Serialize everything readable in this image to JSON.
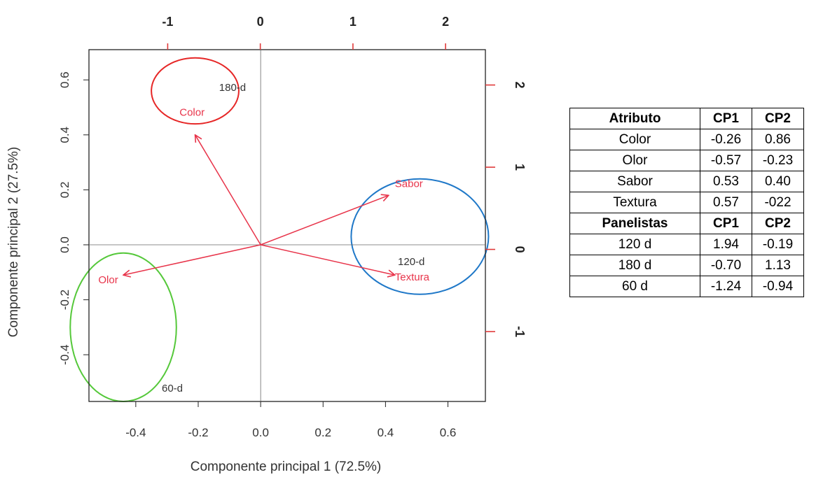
{
  "chart_data": {
    "type": "scatter",
    "subtype": "biplot",
    "title": "",
    "xlabel": "Componente principal 1 (72.5%)",
    "ylabel": "Componente principal 2 (27.5%)",
    "xlim": [
      -0.55,
      0.72
    ],
    "ylim": [
      -0.57,
      0.71
    ],
    "bottom_ticks": [
      "-0.4",
      "-0.2",
      "0.0",
      "0.2",
      "0.4",
      "0.6"
    ],
    "left_ticks": [
      "-0.4",
      "-0.2",
      "0.0",
      "0.2",
      "0.4",
      "0.6"
    ],
    "top_ticks": [
      "-1",
      "0",
      "1",
      "2"
    ],
    "right_ticks": [
      "-1",
      "0",
      "1",
      "2"
    ],
    "top_axis_range": [
      -1.85,
      2.43
    ],
    "right_axis_range": [
      -1.85,
      2.43
    ],
    "arrows": [
      {
        "label": "Color",
        "x": -0.21,
        "y": 0.4,
        "label_x": -0.26,
        "label_y": 0.47
      },
      {
        "label": "Olor",
        "x": -0.44,
        "y": -0.11,
        "label_x": -0.52,
        "label_y": -0.14
      },
      {
        "label": "Sabor",
        "x": 0.41,
        "y": 0.18,
        "label_x": 0.43,
        "label_y": 0.21
      },
      {
        "label": "Textura",
        "x": 0.43,
        "y": -0.11,
        "label_x": 0.43,
        "label_y": -0.13
      }
    ],
    "points": [
      {
        "label": "180-d",
        "x": -0.3,
        "y": 1.93
      },
      {
        "label": "60-d",
        "x": -0.95,
        "y": -1.73
      },
      {
        "label": "120-d",
        "x": 1.63,
        "y": -0.19
      }
    ],
    "clusters": [
      {
        "color": "#e62626",
        "cx": -0.21,
        "cy": 0.56,
        "rx": 0.14,
        "ry": 0.12
      },
      {
        "color": "#1f78c8",
        "cx": 0.51,
        "cy": 0.03,
        "rx": 0.22,
        "ry": 0.21
      },
      {
        "color": "#55c83a",
        "cx": -0.44,
        "cy": -0.3,
        "rx": 0.17,
        "ry": 0.27
      }
    ],
    "colors": {
      "arrow": "#e8344a",
      "axis": "#222222",
      "text": "#333333"
    }
  },
  "table": {
    "sections": [
      {
        "header": [
          "Atributo",
          "CP1",
          "CP2"
        ],
        "rows": [
          [
            "Color",
            "-0.26",
            "0.86"
          ],
          [
            "Olor",
            "-0.57",
            "-0.23"
          ],
          [
            "Sabor",
            "0.53",
            "0.40"
          ],
          [
            "Textura",
            "0.57",
            "-022"
          ]
        ]
      },
      {
        "header": [
          "Panelistas",
          "CP1",
          "CP2"
        ],
        "rows": [
          [
            "120 d",
            "1.94",
            "-0.19"
          ],
          [
            "180 d",
            "-0.70",
            "1.13"
          ],
          [
            "60 d",
            "-1.24",
            "-0.94"
          ]
        ]
      }
    ]
  }
}
